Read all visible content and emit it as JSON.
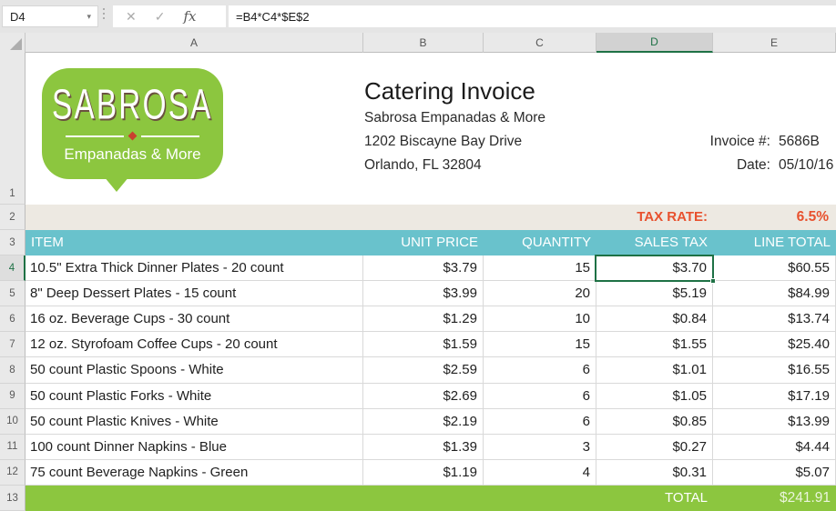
{
  "formula_bar": {
    "cell_reference": "D4",
    "formula": "=B4*C4*$E$2",
    "cancel_icon": "✕",
    "enter_icon": "✓",
    "fx_icon": "fx",
    "dropdown_icon": "▾"
  },
  "grid": {
    "column_headers": [
      "A",
      "B",
      "C",
      "D",
      "E"
    ],
    "row_numbers": [
      "1",
      "2",
      "3",
      "4",
      "5",
      "6",
      "7",
      "8",
      "9",
      "10",
      "11",
      "12",
      "13"
    ],
    "selected_cell": "D4"
  },
  "logo": {
    "brand": "SABROSA",
    "tagline": "Empanadas & More"
  },
  "header": {
    "title": "Catering Invoice",
    "company": "Sabrosa Empanadas & More",
    "address": "1202 Biscayne Bay Drive",
    "city": "Orlando, FL 32804",
    "invoice_label": "Invoice #:",
    "invoice_number": "5686B",
    "date_label": "Date:",
    "date": "05/10/16"
  },
  "tax": {
    "label": "TAX RATE:",
    "value": "6.5%"
  },
  "table": {
    "headers": [
      "ITEM",
      "UNIT PRICE",
      "QUANTITY",
      "SALES TAX",
      "LINE TOTAL"
    ],
    "rows": [
      {
        "item": "10.5\" Extra Thick Dinner Plates - 20 count",
        "unit_price": "$3.79",
        "quantity": "15",
        "sales_tax": "$3.70",
        "line_total": "$60.55"
      },
      {
        "item": "8\" Deep Dessert Plates - 15 count",
        "unit_price": "$3.99",
        "quantity": "20",
        "sales_tax": "$5.19",
        "line_total": "$84.99"
      },
      {
        "item": "16 oz. Beverage Cups - 30 count",
        "unit_price": "$1.29",
        "quantity": "10",
        "sales_tax": "$0.84",
        "line_total": "$13.74"
      },
      {
        "item": "12 oz. Styrofoam Coffee Cups - 20 count",
        "unit_price": "$1.59",
        "quantity": "15",
        "sales_tax": "$1.55",
        "line_total": "$25.40"
      },
      {
        "item": "50 count Plastic Spoons - White",
        "unit_price": "$2.59",
        "quantity": "6",
        "sales_tax": "$1.01",
        "line_total": "$16.55"
      },
      {
        "item": "50 count Plastic Forks - White",
        "unit_price": "$2.69",
        "quantity": "6",
        "sales_tax": "$1.05",
        "line_total": "$17.19"
      },
      {
        "item": "50 count Plastic Knives - White",
        "unit_price": "$2.19",
        "quantity": "6",
        "sales_tax": "$0.85",
        "line_total": "$13.99"
      },
      {
        "item": "100 count Dinner Napkins - Blue",
        "unit_price": "$1.39",
        "quantity": "3",
        "sales_tax": "$0.27",
        "line_total": "$4.44"
      },
      {
        "item": "75 count Beverage Napkins - Green",
        "unit_price": "$1.19",
        "quantity": "4",
        "sales_tax": "$0.31",
        "line_total": "$5.07"
      }
    ],
    "total_label": "TOTAL",
    "total_value": "$241.91"
  },
  "colors": {
    "teal_header": "#69C2CC",
    "brand_green": "#8CC63F",
    "accent_orange": "#E8512E",
    "selection_green": "#1E7145",
    "tax_row_beige": "#EDE9E2"
  }
}
